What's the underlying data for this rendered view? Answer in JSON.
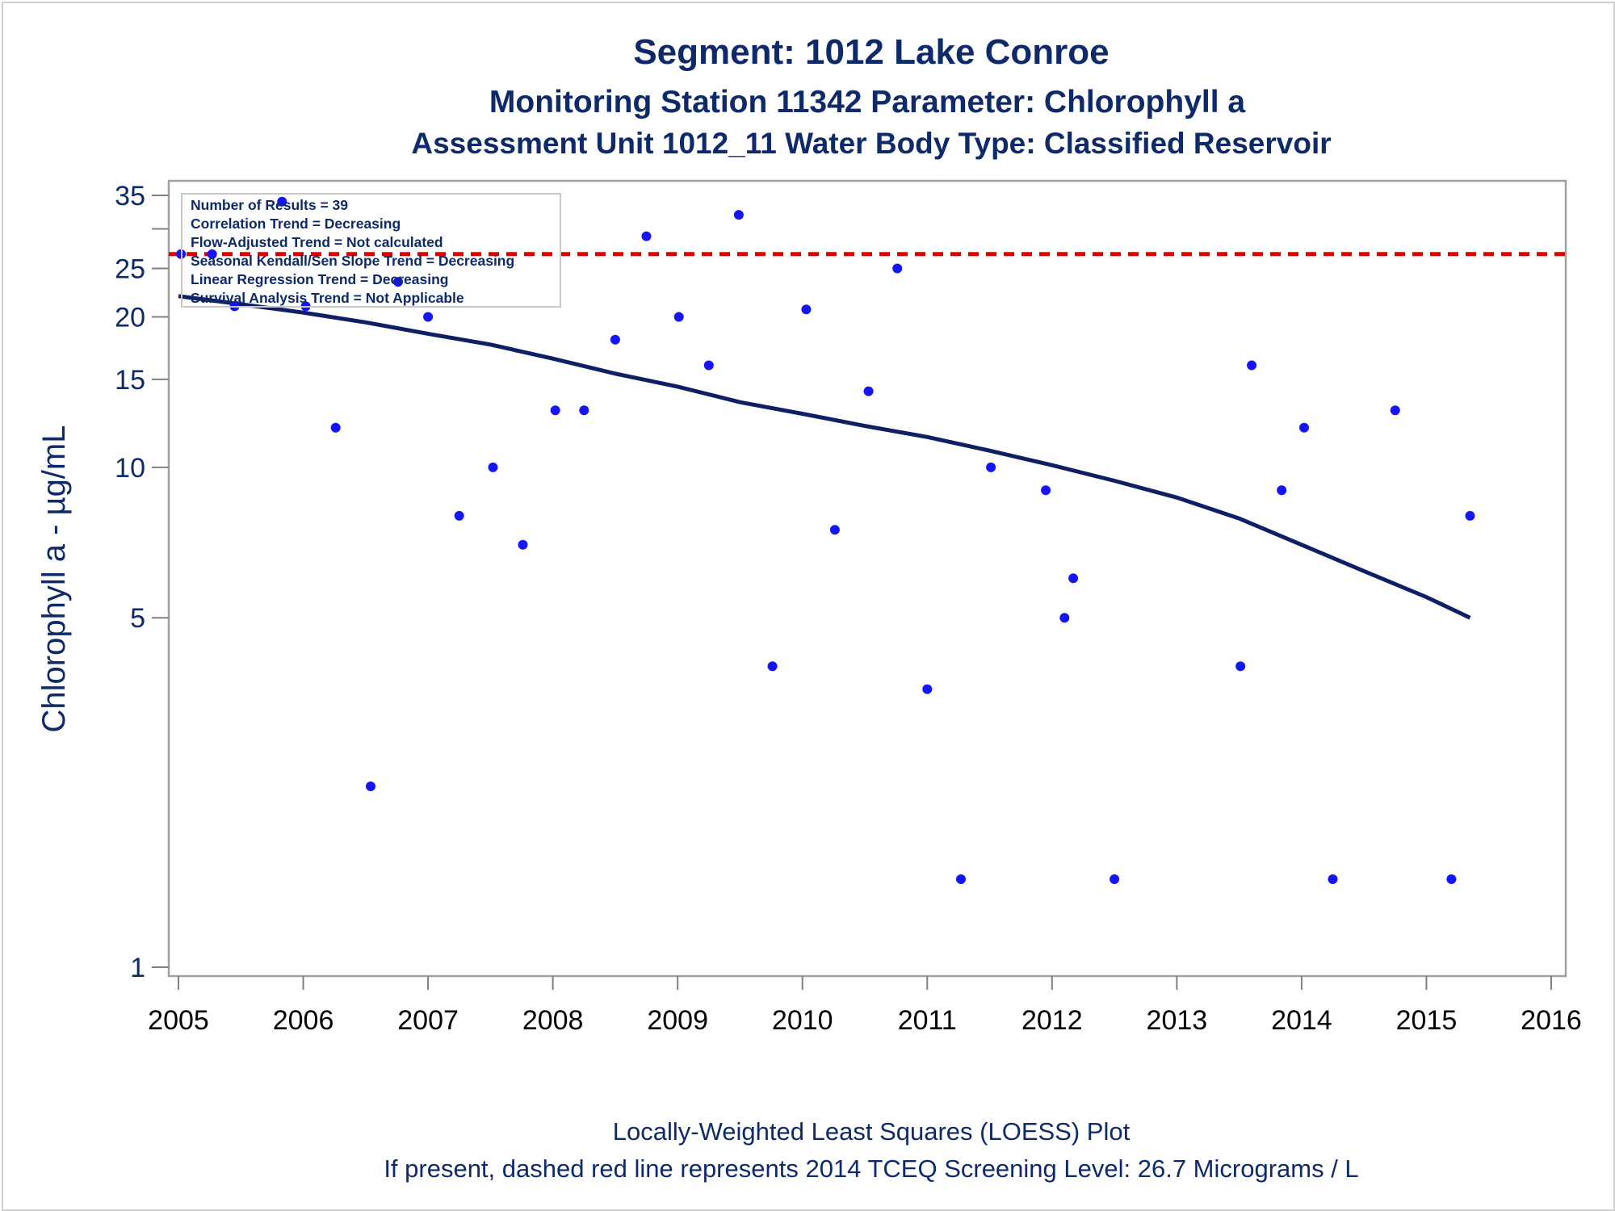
{
  "colors": {
    "title": "#0f2a6b",
    "points": "#1414ff",
    "loess": "#0f1f66",
    "screening": "#dd0000",
    "frame": "#a0a0a0"
  },
  "chart_data": {
    "type": "scatter",
    "title": "Segment: 1012  Lake Conroe",
    "subtitle": "Monitoring Station 11342 Parameter: Chlorophyll a",
    "subtitle2": "Assessment Unit 1012_11   Water Body Type: Classified Reservoir",
    "xlabel": "",
    "ylabel": "Chlorophyll a -  µg/mL",
    "x_axis": {
      "range": [
        2005,
        2016
      ],
      "ticks": [
        2005,
        2006,
        2007,
        2008,
        2009,
        2010,
        2011,
        2012,
        2013,
        2014,
        2015,
        2016
      ]
    },
    "y_axis": {
      "scale": "log",
      "range": [
        1,
        35
      ],
      "ticks": [
        1,
        5,
        10,
        15,
        20,
        25,
        35
      ],
      "minor_ticks": [
        30
      ]
    },
    "grid": false,
    "points": [
      {
        "x": 2005.02,
        "y": 26.7
      },
      {
        "x": 2005.27,
        "y": 26.7
      },
      {
        "x": 2005.45,
        "y": 21
      },
      {
        "x": 2005.83,
        "y": 34
      },
      {
        "x": 2006.02,
        "y": 21
      },
      {
        "x": 2006.26,
        "y": 12
      },
      {
        "x": 2006.54,
        "y": 2.3
      },
      {
        "x": 2006.76,
        "y": 23.5
      },
      {
        "x": 2007.0,
        "y": 20
      },
      {
        "x": 2007.25,
        "y": 8
      },
      {
        "x": 2007.52,
        "y": 10
      },
      {
        "x": 2007.76,
        "y": 7
      },
      {
        "x": 2008.02,
        "y": 13
      },
      {
        "x": 2008.25,
        "y": 13
      },
      {
        "x": 2008.5,
        "y": 18
      },
      {
        "x": 2008.75,
        "y": 29
      },
      {
        "x": 2009.01,
        "y": 20
      },
      {
        "x": 2009.25,
        "y": 16
      },
      {
        "x": 2009.49,
        "y": 32
      },
      {
        "x": 2009.76,
        "y": 4
      },
      {
        "x": 2010.03,
        "y": 20.7
      },
      {
        "x": 2010.26,
        "y": 7.5
      },
      {
        "x": 2010.53,
        "y": 14.2
      },
      {
        "x": 2010.76,
        "y": 25
      },
      {
        "x": 2011.0,
        "y": 3.6
      },
      {
        "x": 2011.27,
        "y": 1.5
      },
      {
        "x": 2011.51,
        "y": 10
      },
      {
        "x": 2011.95,
        "y": 9
      },
      {
        "x": 2012.1,
        "y": 5
      },
      {
        "x": 2012.17,
        "y": 6
      },
      {
        "x": 2012.5,
        "y": 1.5
      },
      {
        "x": 2013.51,
        "y": 4
      },
      {
        "x": 2013.6,
        "y": 16
      },
      {
        "x": 2013.84,
        "y": 9
      },
      {
        "x": 2014.02,
        "y": 12
      },
      {
        "x": 2014.25,
        "y": 1.5
      },
      {
        "x": 2014.75,
        "y": 13
      },
      {
        "x": 2015.2,
        "y": 1.5
      },
      {
        "x": 2015.35,
        "y": 8
      }
    ],
    "loess": {
      "x": [
        2005.0,
        2005.5,
        2006.0,
        2006.5,
        2007.0,
        2007.5,
        2008.0,
        2008.5,
        2009.0,
        2009.5,
        2010.0,
        2010.5,
        2011.0,
        2011.5,
        2012.0,
        2012.5,
        2013.0,
        2013.5,
        2014.0,
        2014.5,
        2015.0,
        2015.35
      ],
      "y": [
        22,
        21.2,
        20.4,
        19.5,
        18.5,
        17.6,
        16.5,
        15.4,
        14.5,
        13.5,
        12.8,
        12.1,
        11.5,
        10.8,
        10.1,
        9.4,
        8.7,
        7.9,
        7.0,
        6.2,
        5.5,
        5.0
      ]
    },
    "screening_level": 26.7,
    "inset": [
      "Number of Results = 39",
      "Correlation Trend = Decreasing",
      "Flow-Adjusted Trend = Not calculated",
      "Seasonal Kendall/Sen Slope Trend = Decreasing",
      "Linear Regression Trend = Decreasing",
      "Survival Analysis Trend = Not Applicable"
    ],
    "footnote1": "Locally-Weighted Least Squares (LOESS) Plot",
    "footnote2": "If present, dashed red line represents 2014 TCEQ Screening Level: 26.7 Micrograms / L"
  }
}
